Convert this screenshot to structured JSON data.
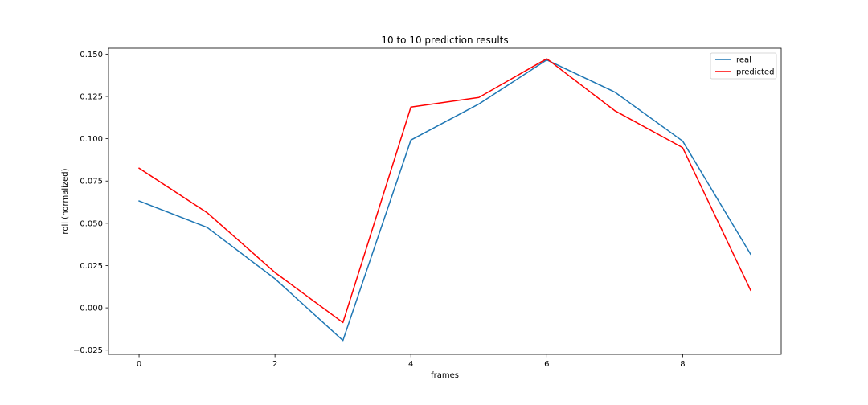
{
  "chart_data": {
    "type": "line",
    "title": "10 to 10 prediction results",
    "xlabel": "frames",
    "ylabel": "roll (normalized)",
    "x": [
      0,
      1,
      2,
      3,
      4,
      5,
      6,
      7,
      8,
      9
    ],
    "xlim": [
      -0.45,
      9.45
    ],
    "ylim": [
      -0.0275,
      0.1535
    ],
    "xticks": [
      0,
      2,
      4,
      6,
      8
    ],
    "yticks": [
      -0.025,
      0.0,
      0.025,
      0.05,
      0.075,
      0.1,
      0.125,
      0.15
    ],
    "ytick_labels": [
      "−0.025",
      "0.000",
      "0.025",
      "0.050",
      "0.075",
      "0.100",
      "0.125",
      "0.150"
    ],
    "grid": false,
    "legend_position": "top-right",
    "series": [
      {
        "name": "real",
        "color": "#1f77b4",
        "values": [
          0.0632,
          0.0476,
          0.0172,
          -0.0193,
          0.0992,
          0.1205,
          0.1466,
          0.1276,
          0.0986,
          0.0317
        ]
      },
      {
        "name": "predicted",
        "color": "#ff0000",
        "values": [
          0.0826,
          0.0563,
          0.0209,
          -0.0087,
          0.1187,
          0.1244,
          0.1473,
          0.1166,
          0.0947,
          0.0104
        ]
      }
    ]
  }
}
